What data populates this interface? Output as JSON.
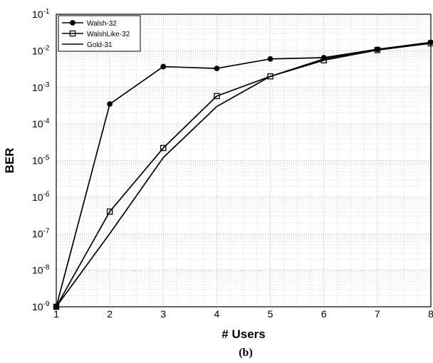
{
  "chart_data": {
    "type": "line",
    "caption": "(b)",
    "xlabel": "# Users",
    "ylabel": "BER",
    "x": [
      1,
      2,
      3,
      4,
      5,
      6,
      7,
      8
    ],
    "xlim": [
      1,
      8
    ],
    "xticks": [
      "1",
      "2",
      "3",
      "4",
      "5",
      "6",
      "7",
      "8"
    ],
    "ylim": [
      1e-09,
      0.1
    ],
    "yscale": "log",
    "yticks": [
      {
        "base": "10",
        "exp": "-9"
      },
      {
        "base": "10",
        "exp": "-8"
      },
      {
        "base": "10",
        "exp": "-7"
      },
      {
        "base": "10",
        "exp": "-6"
      },
      {
        "base": "10",
        "exp": "-5"
      },
      {
        "base": "10",
        "exp": "-4"
      },
      {
        "base": "10",
        "exp": "-3"
      },
      {
        "base": "10",
        "exp": "-2"
      },
      {
        "base": "10",
        "exp": "-1"
      }
    ],
    "grid": true,
    "legend_position": "top-left",
    "series": [
      {
        "name": "Walsh-32",
        "marker": "filled-circle",
        "color": "#000000",
        "values": [
          1e-09,
          0.00035,
          0.0037,
          0.0033,
          0.006,
          0.0065,
          0.011,
          0.017
        ]
      },
      {
        "name": "WalshLike-32",
        "marker": "open-square",
        "color": "#000000",
        "values": [
          1e-09,
          4e-07,
          2.2e-05,
          0.00058,
          0.002,
          0.0055,
          0.0105,
          0.016
        ]
      },
      {
        "name": "Gold-31",
        "marker": "none",
        "color": "#000000",
        "values": [
          1e-09,
          1e-07,
          1.2e-05,
          0.0003,
          0.002,
          0.006,
          0.011,
          0.016
        ]
      }
    ]
  }
}
